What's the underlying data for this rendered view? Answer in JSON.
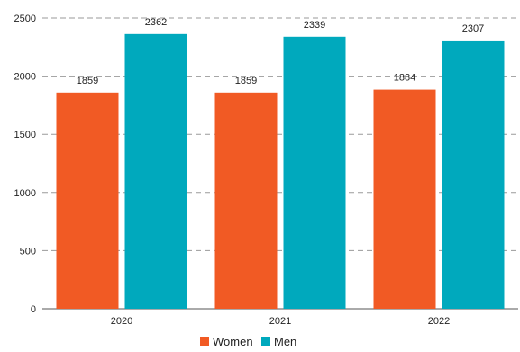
{
  "chart_data": {
    "type": "bar",
    "categories": [
      "2020",
      "2021",
      "2022"
    ],
    "series": [
      {
        "name": "Women",
        "values": [
          1859,
          1859,
          1884
        ],
        "color": "#f15a24"
      },
      {
        "name": "Men",
        "values": [
          2362,
          2339,
          2307
        ],
        "color": "#00a9bd"
      }
    ],
    "ylim": [
      0,
      2500
    ],
    "yticks": [
      0,
      500,
      1000,
      1500,
      2000,
      2500
    ],
    "grid": true,
    "legend_position": "bottom"
  }
}
